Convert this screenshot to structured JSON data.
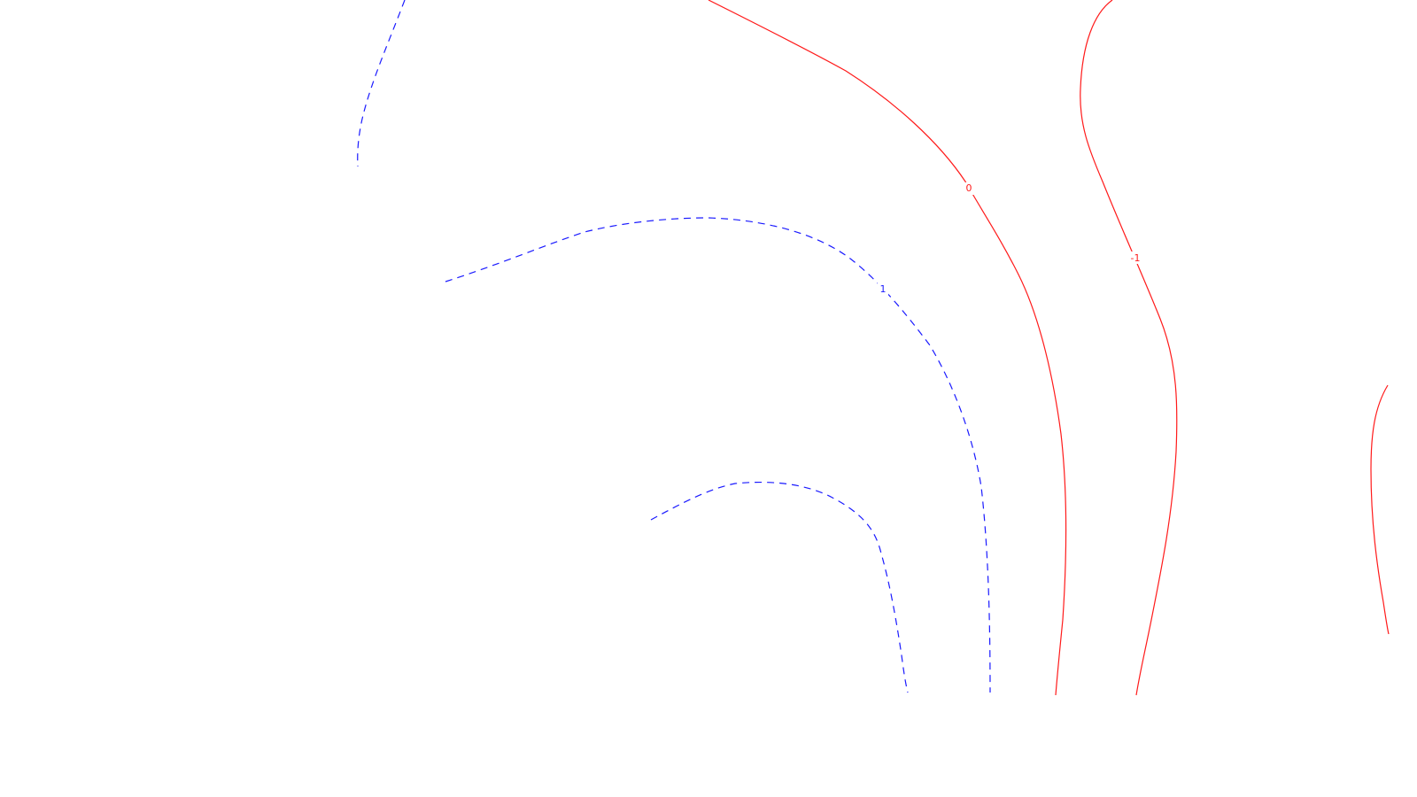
{
  "contour_map": {
    "labels": {
      "one": "1",
      "zero": "0",
      "neg_one": "-1"
    },
    "colors": {
      "positive": "#1a1aff",
      "zero_and_negative": "#ff1a1a",
      "background": "#ffffff"
    },
    "styles": {
      "positive": "dashed",
      "zero_and_negative": "solid"
    }
  }
}
